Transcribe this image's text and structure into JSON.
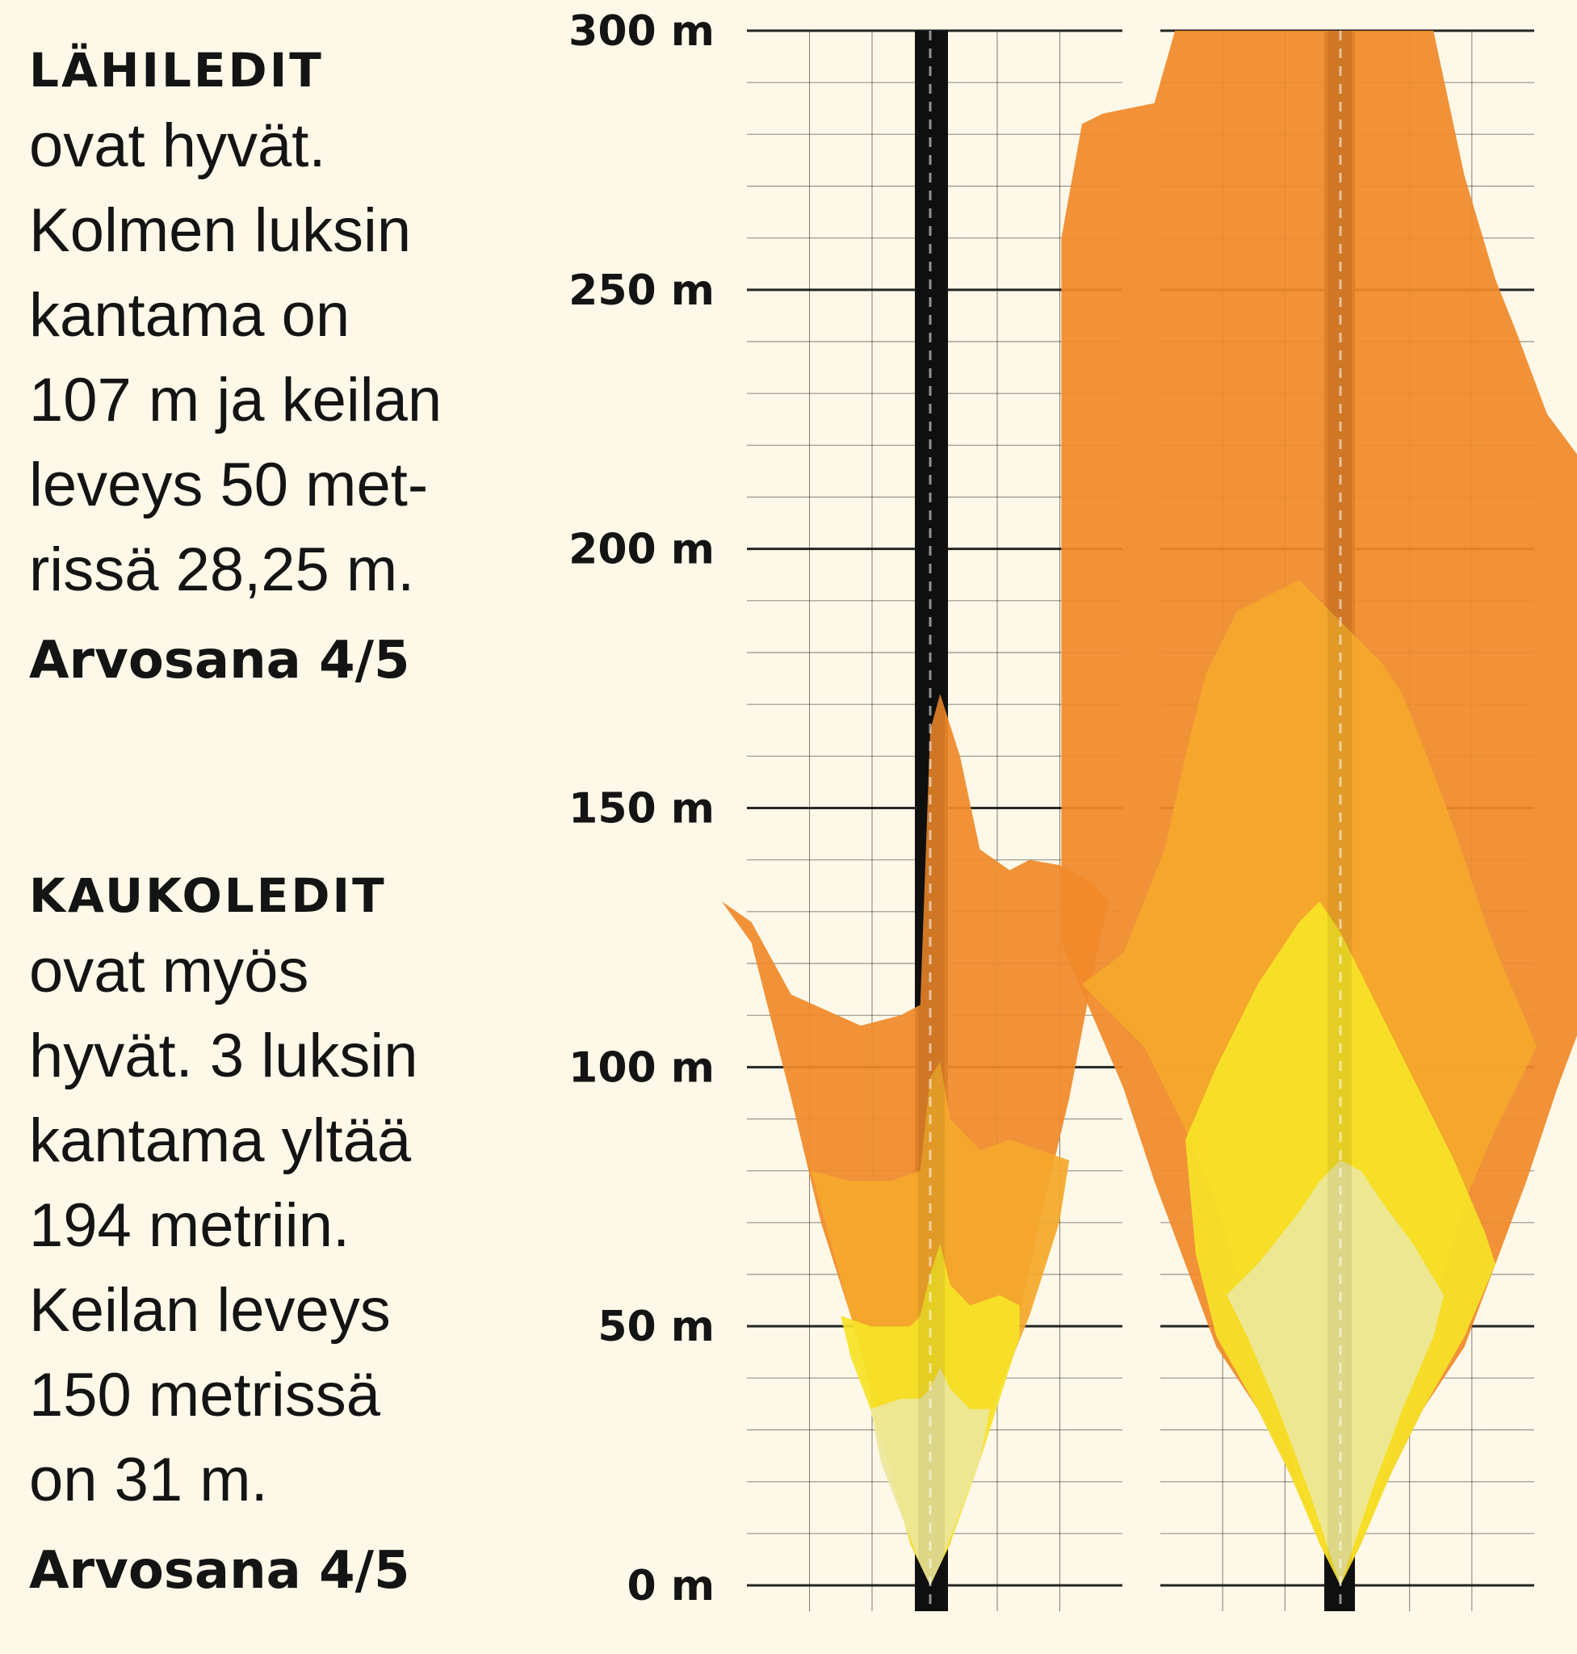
{
  "blocks": [
    {
      "heading": "LÄHILEDIT",
      "lines": [
        "ovat hyvät.",
        "Kolmen luksin",
        "kantama on",
        "107 m ja keilan",
        "leveys 50 met-",
        "rissä 28,25 m."
      ],
      "grade": "Arvosana 4/5"
    },
    {
      "heading": "KAUKOLEDIT",
      "lines": [
        "ovat myös",
        "hyvät. 3 luksin",
        "kantama yltää",
        "194 metriin.",
        "Keilan leveys",
        "150 metrissä",
        "on 31 m."
      ],
      "grade": "Arvosana 4/5"
    }
  ],
  "colors": {
    "background": "#fdf8e8",
    "grid": "#1a1a1a",
    "road": "#111111",
    "levels": [
      "#f08a2a",
      "#f4a92b",
      "#f6e227",
      "#ece79a"
    ]
  },
  "chart_data": {
    "type": "area",
    "ylim": [
      0,
      300
    ],
    "yticks": [
      {
        "value": 300,
        "label": "300 m"
      },
      {
        "value": 250,
        "label": "250 m"
      },
      {
        "value": 200,
        "label": "200 m"
      },
      {
        "value": 150,
        "label": "150 m"
      },
      {
        "value": 100,
        "label": "100 m"
      },
      {
        "value": 50,
        "label": "50 m"
      },
      {
        "value": 0,
        "label": "0 m"
      }
    ],
    "panels": [
      {
        "name": "lähiledit",
        "contours": [
          {
            "level": 1,
            "points": [
              [
                -21,
                132
              ],
              [
                -18,
                128
              ],
              [
                -14,
                114
              ],
              [
                -7,
                108
              ],
              [
                -3,
                110
              ],
              [
                -1,
                112
              ],
              [
                0,
                165
              ],
              [
                1,
                172
              ],
              [
                3,
                160
              ],
              [
                5,
                142
              ],
              [
                8,
                138
              ],
              [
                10,
                140
              ],
              [
                13,
                139
              ],
              [
                16,
                136
              ],
              [
                18,
                132
              ],
              [
                17,
                124
              ],
              [
                14,
                94
              ],
              [
                11,
                70
              ],
              [
                9,
                52
              ],
              [
                6,
                38
              ],
              [
                4,
                22
              ],
              [
                2,
                8
              ],
              [
                0,
                0
              ],
              [
                -2,
                8
              ],
              [
                -4,
                22
              ],
              [
                -6,
                38
              ],
              [
                -8,
                52
              ],
              [
                -11,
                70
              ],
              [
                -14,
                94
              ],
              [
                -18,
                124
              ]
            ]
          },
          {
            "level": 2,
            "points": [
              [
                -12,
                80
              ],
              [
                -8,
                78
              ],
              [
                -4,
                78
              ],
              [
                -1,
                80
              ],
              [
                0,
                98
              ],
              [
                1,
                101
              ],
              [
                2,
                90
              ],
              [
                5,
                84
              ],
              [
                8,
                86
              ],
              [
                11,
                84
              ],
              [
                14,
                82
              ],
              [
                13,
                70
              ],
              [
                10,
                52
              ],
              [
                7,
                38
              ],
              [
                4,
                22
              ],
              [
                2,
                8
              ],
              [
                0,
                0
              ],
              [
                -2,
                8
              ],
              [
                -4,
                22
              ],
              [
                -6,
                38
              ],
              [
                -8,
                52
              ],
              [
                -10,
                66
              ]
            ]
          },
          {
            "level": 3,
            "points": [
              [
                -9,
                52
              ],
              [
                -6,
                50
              ],
              [
                -2,
                50
              ],
              [
                -1,
                52
              ],
              [
                0,
                60
              ],
              [
                1,
                66
              ],
              [
                2,
                58
              ],
              [
                4,
                54
              ],
              [
                7,
                56
              ],
              [
                9,
                54
              ],
              [
                9,
                48
              ],
              [
                7,
                36
              ],
              [
                5,
                24
              ],
              [
                2,
                8
              ],
              [
                0,
                0
              ],
              [
                -2,
                8
              ],
              [
                -4,
                22
              ],
              [
                -6,
                34
              ],
              [
                -8,
                44
              ]
            ]
          },
          {
            "level": 4,
            "points": [
              [
                -6,
                34
              ],
              [
                -3,
                36
              ],
              [
                -1,
                36
              ],
              [
                0,
                38
              ],
              [
                1,
                42
              ],
              [
                2,
                38
              ],
              [
                4,
                34
              ],
              [
                6,
                34
              ],
              [
                5,
                24
              ],
              [
                3,
                14
              ],
              [
                1,
                4
              ],
              [
                0,
                0
              ],
              [
                -1,
                4
              ],
              [
                -3,
                14
              ],
              [
                -5,
                24
              ]
            ]
          }
        ]
      },
      {
        "name": "kaukoledit",
        "contours": [
          {
            "level": 1,
            "points": [
              [
                -27,
                260
              ],
              [
                -25,
                282
              ],
              [
                -23,
                284
              ],
              [
                -18,
                286
              ],
              [
                -16,
                300
              ],
              [
                0,
                300
              ],
              [
                9,
                300
              ],
              [
                12,
                272
              ],
              [
                15,
                252
              ],
              [
                17,
                242
              ],
              [
                20,
                226
              ],
              [
                23,
                218
              ],
              [
                27,
                208
              ],
              [
                27,
                126
              ],
              [
                24,
                112
              ],
              [
                21,
                96
              ],
              [
                18,
                78
              ],
              [
                15,
                62
              ],
              [
                12,
                46
              ],
              [
                8,
                34
              ],
              [
                4,
                18
              ],
              [
                2,
                8
              ],
              [
                0,
                0
              ],
              [
                -2,
                8
              ],
              [
                -4,
                18
              ],
              [
                -8,
                34
              ],
              [
                -12,
                46
              ],
              [
                -15,
                62
              ],
              [
                -18,
                78
              ],
              [
                -21,
                96
              ],
              [
                -24,
                110
              ],
              [
                -27,
                124
              ]
            ]
          },
          {
            "level": 2,
            "points": [
              [
                -25,
                116
              ],
              [
                -21,
                122
              ],
              [
                -17,
                142
              ],
              [
                -15,
                160
              ],
              [
                -13,
                176
              ],
              [
                -10,
                188
              ],
              [
                -4,
                194
              ],
              [
                0,
                186
              ],
              [
                4,
                178
              ],
              [
                6,
                172
              ],
              [
                8,
                162
              ],
              [
                11,
                146
              ],
              [
                14,
                128
              ],
              [
                16,
                118
              ],
              [
                19,
                104
              ],
              [
                15,
                88
              ],
              [
                12,
                74
              ],
              [
                9,
                54
              ],
              [
                6,
                34
              ],
              [
                3,
                14
              ],
              [
                0,
                0
              ],
              [
                -3,
                14
              ],
              [
                -6,
                34
              ],
              [
                -9,
                54
              ],
              [
                -12,
                74
              ],
              [
                -15,
                88
              ],
              [
                -19,
                104
              ]
            ]
          },
          {
            "level": 3,
            "points": [
              [
                -15,
                86
              ],
              [
                -12,
                100
              ],
              [
                -8,
                116
              ],
              [
                -4,
                128
              ],
              [
                -2,
                132
              ],
              [
                0,
                126
              ],
              [
                2,
                118
              ],
              [
                5,
                106
              ],
              [
                8,
                94
              ],
              [
                11,
                82
              ],
              [
                14,
                68
              ],
              [
                15,
                62
              ],
              [
                12,
                48
              ],
              [
                8,
                34
              ],
              [
                5,
                22
              ],
              [
                2,
                8
              ],
              [
                0,
                0
              ],
              [
                -2,
                8
              ],
              [
                -5,
                22
              ],
              [
                -8,
                34
              ],
              [
                -12,
                48
              ],
              [
                -14,
                64
              ]
            ]
          },
          {
            "level": 4,
            "points": [
              [
                -11,
                56
              ],
              [
                -8,
                62
              ],
              [
                -4,
                72
              ],
              [
                -2,
                78
              ],
              [
                0,
                82
              ],
              [
                2,
                80
              ],
              [
                4,
                74
              ],
              [
                7,
                66
              ],
              [
                10,
                56
              ],
              [
                9,
                48
              ],
              [
                6,
                34
              ],
              [
                3,
                18
              ],
              [
                0,
                0
              ],
              [
                -3,
                18
              ],
              [
                -6,
                34
              ],
              [
                -9,
                48
              ]
            ]
          }
        ]
      }
    ]
  }
}
